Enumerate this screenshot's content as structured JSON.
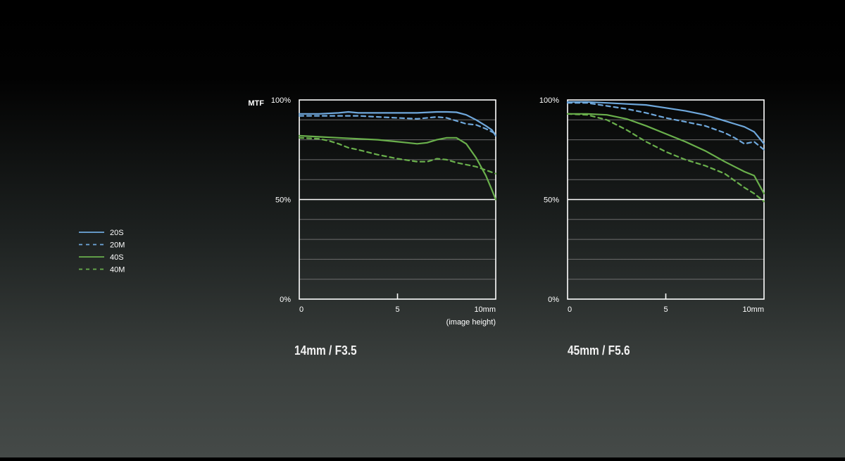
{
  "legend": {
    "items": [
      {
        "label": "20S",
        "color": "#6fa8dc",
        "dash": false
      },
      {
        "label": "20M",
        "color": "#6fa8dc",
        "dash": true
      },
      {
        "label": "40S",
        "color": "#6ab04c",
        "dash": false
      },
      {
        "label": "40M",
        "color": "#6ab04c",
        "dash": true
      }
    ]
  },
  "colors": {
    "blue": "#6fa8dc",
    "green": "#6ab04c",
    "grid": "#6e6e6e",
    "frame": "#ffffff"
  },
  "chart_data": [
    {
      "type": "line",
      "title": "14mm / F3.5",
      "ylabel": "MTF",
      "xlabel": "(image height)",
      "xlim": [
        0,
        10
      ],
      "ylim": [
        0,
        100
      ],
      "x_ticks": [
        {
          "value": 0,
          "label": "0"
        },
        {
          "value": 5,
          "label": "5"
        },
        {
          "value": 10,
          "label": "10mm"
        }
      ],
      "y_ticks": [
        {
          "value": 0,
          "label": "0%"
        },
        {
          "value": 50,
          "label": "50%"
        },
        {
          "value": 100,
          "label": "100%"
        }
      ],
      "grid": true,
      "series": [
        {
          "name": "20S",
          "x": [
            0,
            1,
            2,
            2.5,
            3,
            4,
            5,
            6,
            7,
            7.5,
            8,
            8.5,
            9,
            9.5,
            9.8,
            10
          ],
          "y": [
            93,
            93,
            93.5,
            94,
            93.5,
            93.5,
            93.5,
            93.5,
            94,
            94,
            93.8,
            92.5,
            90,
            87,
            85,
            82
          ]
        },
        {
          "name": "20M",
          "x": [
            0,
            1,
            2,
            3,
            4,
            5,
            6,
            7,
            7.5,
            8,
            8.5,
            9,
            9.5,
            10
          ],
          "y": [
            92,
            92,
            92,
            92,
            91.5,
            91,
            90.5,
            91.5,
            91,
            89.5,
            88,
            87.5,
            85.5,
            83
          ]
        },
        {
          "name": "40S",
          "x": [
            0,
            1,
            2,
            3,
            4,
            5,
            5.5,
            6,
            6.5,
            7,
            7.5,
            8,
            8.5,
            9,
            9.5,
            9.8,
            10
          ],
          "y": [
            82,
            81.5,
            81,
            80.5,
            80,
            79,
            78.5,
            78,
            78.5,
            80,
            81,
            81,
            78,
            71,
            62,
            55,
            50
          ]
        },
        {
          "name": "40M",
          "x": [
            0,
            1,
            1.5,
            2,
            2.5,
            3,
            4,
            5,
            6,
            6.5,
            7,
            7.5,
            8,
            9,
            10
          ],
          "y": [
            81,
            80.5,
            79.5,
            78,
            76,
            75,
            72.5,
            70.5,
            69,
            69,
            70.5,
            70,
            68.5,
            66.5,
            63
          ]
        }
      ]
    },
    {
      "type": "line",
      "title": "45mm / F5.6",
      "ylabel": "",
      "xlabel": "",
      "xlim": [
        0,
        10
      ],
      "ylim": [
        0,
        100
      ],
      "x_ticks": [
        {
          "value": 0,
          "label": "0"
        },
        {
          "value": 5,
          "label": "5"
        },
        {
          "value": 10,
          "label": "10mm"
        }
      ],
      "y_ticks": [
        {
          "value": 0,
          "label": "0%"
        },
        {
          "value": 50,
          "label": "50%"
        },
        {
          "value": 100,
          "label": "100%"
        }
      ],
      "grid": true,
      "series": [
        {
          "name": "20S",
          "x": [
            0,
            1,
            2,
            3,
            4,
            5,
            6,
            7,
            8,
            8.5,
            9,
            9.5,
            10
          ],
          "y": [
            99,
            99,
            98.5,
            98,
            97.5,
            96,
            94.5,
            92.5,
            89.5,
            88,
            86.5,
            84,
            78
          ]
        },
        {
          "name": "20M",
          "x": [
            0,
            1,
            2,
            3,
            4,
            5,
            6,
            7,
            8,
            8.5,
            9,
            9.5,
            10
          ],
          "y": [
            98.5,
            98.5,
            97,
            95.5,
            93.5,
            91,
            89,
            87,
            83.5,
            81,
            78,
            79,
            75
          ]
        },
        {
          "name": "40S",
          "x": [
            0,
            1,
            2,
            3,
            4,
            5,
            6,
            7,
            8,
            8.5,
            9,
            9.5,
            10
          ],
          "y": [
            93,
            93,
            92.5,
            90.5,
            87,
            83,
            79,
            74.5,
            69,
            66.5,
            64,
            62,
            53
          ]
        },
        {
          "name": "40M",
          "x": [
            0,
            1,
            2,
            3,
            4,
            5,
            6,
            7,
            8,
            9,
            9.5,
            10
          ],
          "y": [
            93,
            92.5,
            90,
            85,
            79,
            74,
            70,
            67,
            63,
            56,
            53,
            49
          ]
        }
      ]
    }
  ]
}
